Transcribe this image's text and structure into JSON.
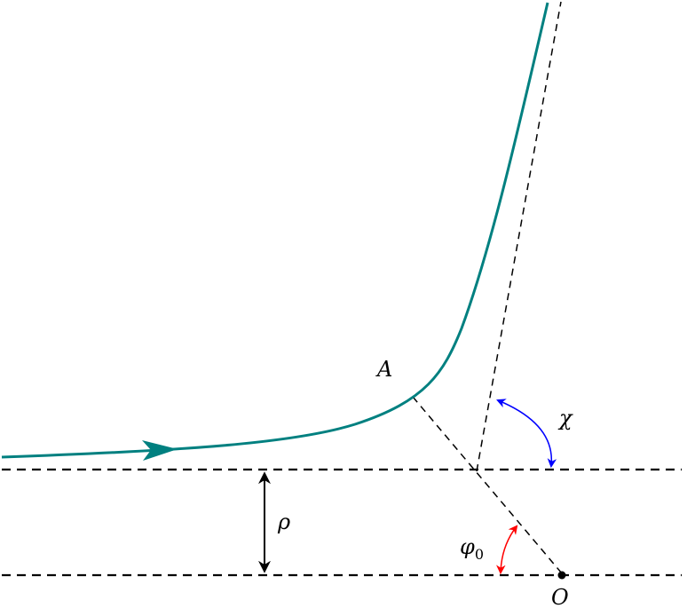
{
  "colors": {
    "trajectory": "#008080",
    "chi_arrow": "#0000ff",
    "phi_arrow": "#ff0000",
    "lines": "#000000"
  },
  "labels": {
    "point_a": "A",
    "chi": "χ",
    "rho": "ρ",
    "phi_base": "φ",
    "phi_sub": "0",
    "origin": "O"
  }
}
